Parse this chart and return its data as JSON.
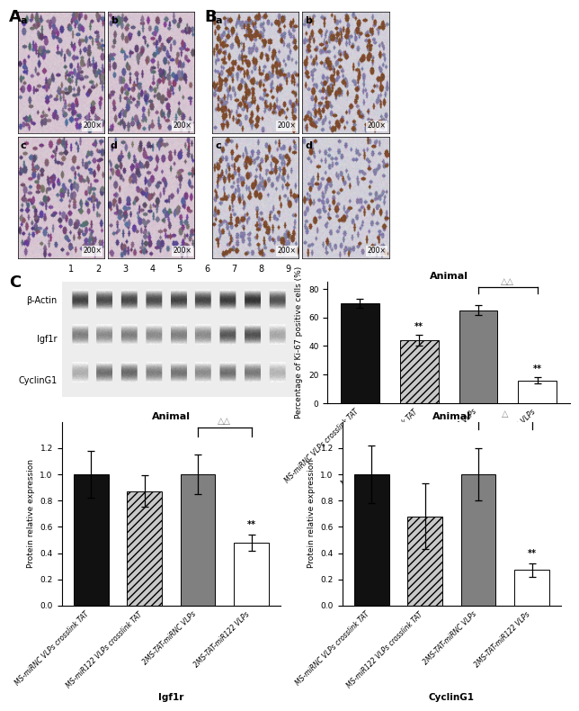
{
  "bar_categories": [
    "MS-miRNC VLPs crosslink TAT",
    "MS-miR122 VLPs crosslink TAT",
    "2MS-TAT-miRNC VLPs",
    "2MS-TAT-miR122 VLPs"
  ],
  "bar_colors": [
    "#111111",
    "#c8c8c8",
    "#808080",
    "#ffffff"
  ],
  "bar_hatches": [
    "",
    "////",
    "",
    ""
  ],
  "ki67_values": [
    70.0,
    44.0,
    65.0,
    16.0
  ],
  "ki67_errors": [
    3.0,
    4.0,
    3.5,
    2.0
  ],
  "ki67_ylabel": "Percentage of Ki-67 positive cells (%)",
  "ki67_title": "Animal",
  "ki67_ylim": [
    0,
    85
  ],
  "igf1r_values": [
    1.0,
    0.87,
    1.0,
    0.48
  ],
  "igf1r_errors": [
    0.18,
    0.12,
    0.15,
    0.06
  ],
  "igf1r_ylabel": "Protein relative expression",
  "igf1r_title": "Animal",
  "igf1r_xlabel": "Igf1r",
  "igf1r_ylim": [
    0.0,
    1.4
  ],
  "cyclin_values": [
    1.0,
    0.68,
    1.0,
    0.27
  ],
  "cyclin_errors": [
    0.22,
    0.25,
    0.2,
    0.05
  ],
  "cyclin_ylabel": "Protein relative expression",
  "cyclin_title": "Animal",
  "cyclin_xlabel": "CyclinG1",
  "cyclin_ylim": [
    0.0,
    1.4
  ],
  "western_blot_labels": [
    "β-Actin",
    "Igf1r",
    "CyclinG1"
  ],
  "lane_numbers": [
    "1",
    "2",
    "3",
    "4",
    "5",
    "6",
    "7",
    "8",
    "9"
  ],
  "fig_width": 6.5,
  "fig_height": 6.92
}
